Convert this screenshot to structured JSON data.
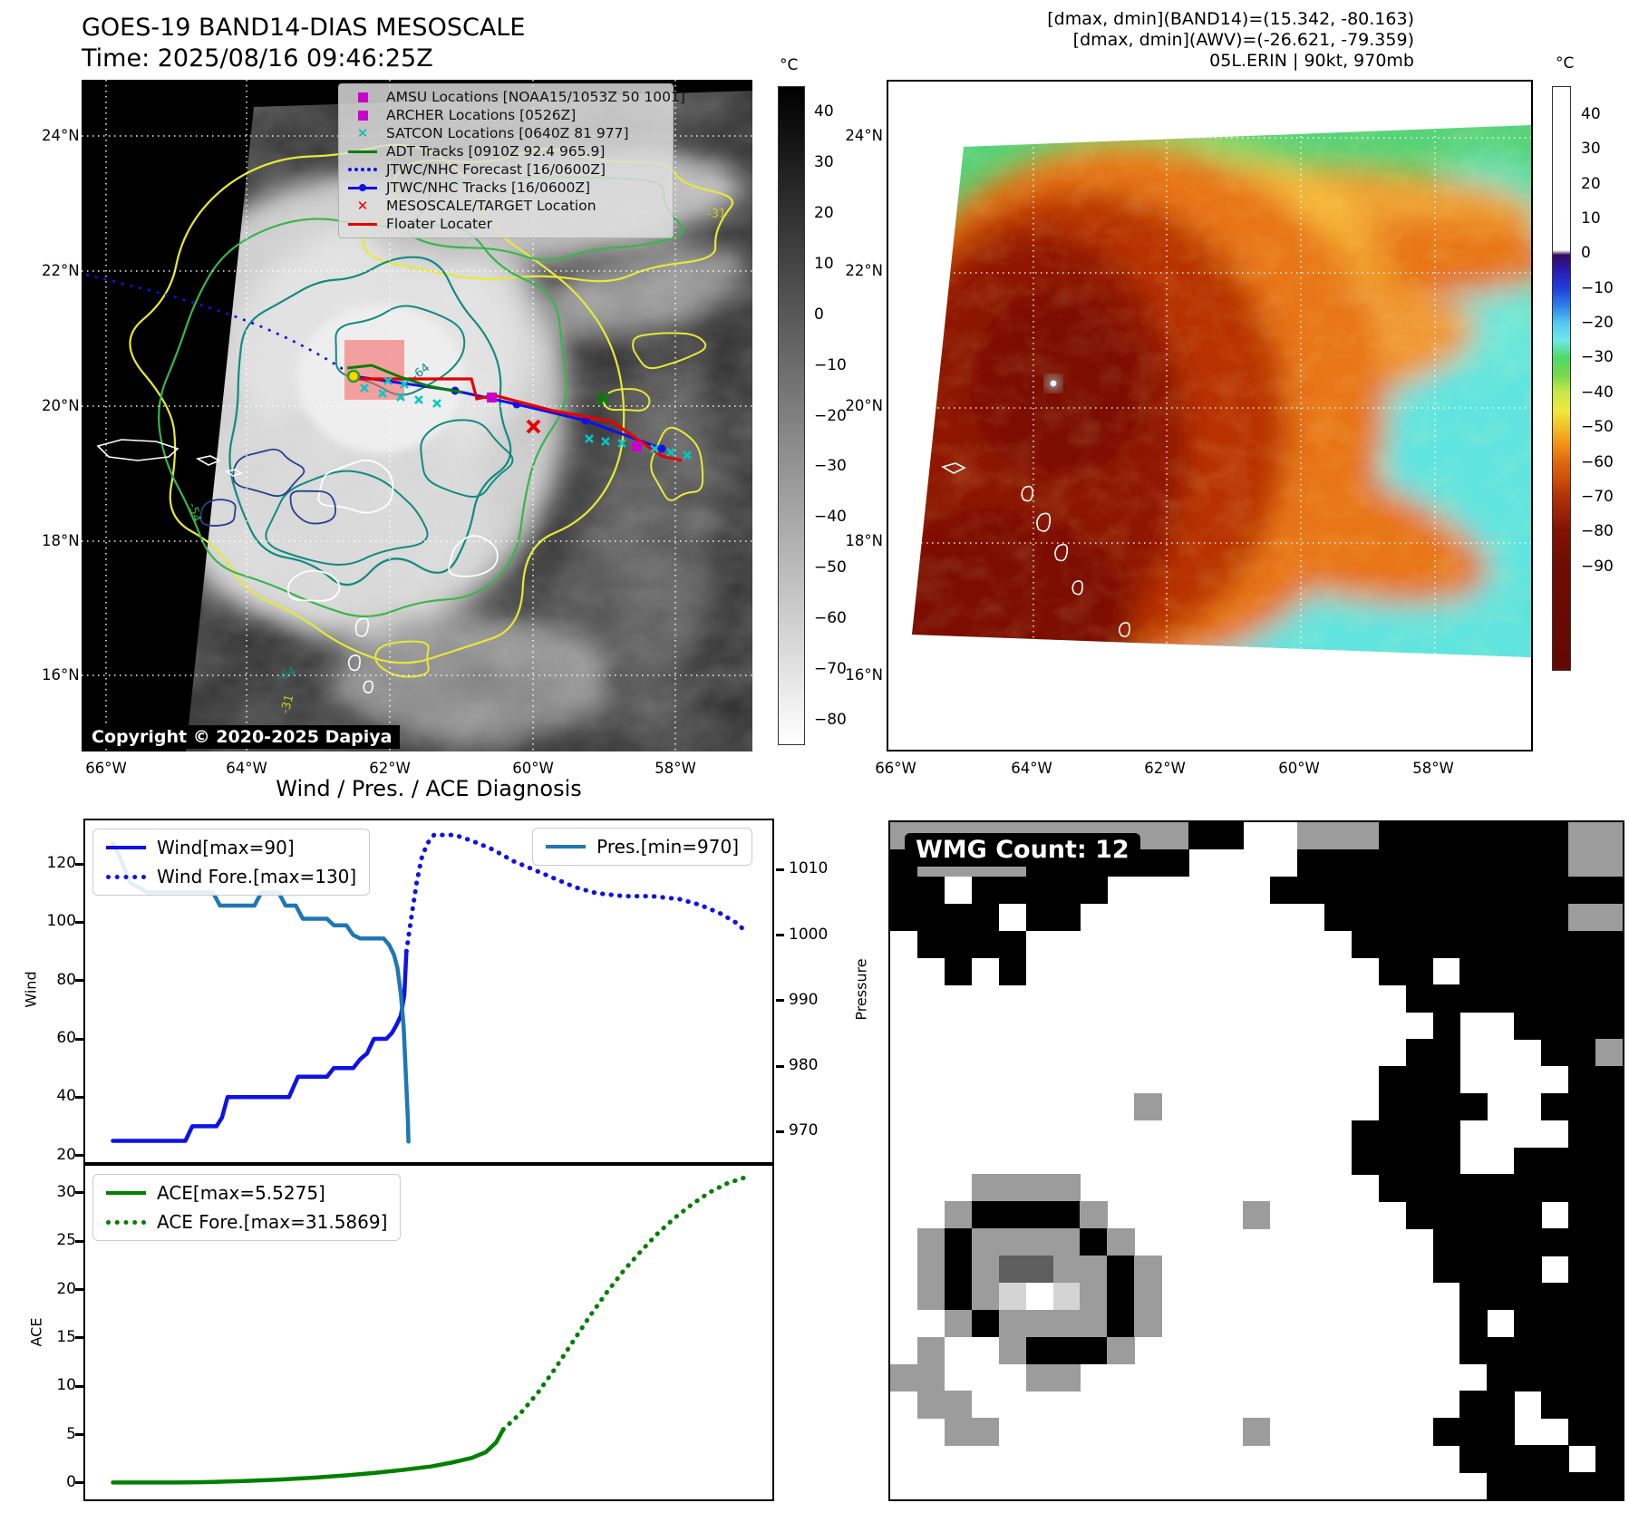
{
  "header": {
    "title_line1": "GOES-19 BAND14-DIAS MESOSCALE",
    "title_line2": "Time: 2025/08/16 09:46:25Z",
    "info_line1": "[dmax, dmin](BAND14)=(15.342, -80.163)",
    "info_line2": "[dmax, dmin](AWV)=(-26.621, -79.359)",
    "info_line3": "05L.ERIN | 90kt, 970mb"
  },
  "section_title": "Wind / Pres. / ACE Diagnosis",
  "map_left": {
    "lat_ticks": [
      "24°N",
      "22°N",
      "20°N",
      "18°N",
      "16°N"
    ],
    "lon_ticks": [
      "66°W",
      "64°W",
      "62°W",
      "60°W",
      "58°W"
    ],
    "copyright": "Copyright © 2020-2025 Dapiya",
    "colorbar": {
      "unit": "°C",
      "ticks": [
        40,
        30,
        20,
        10,
        0,
        -10,
        -20,
        -30,
        -40,
        -50,
        -60,
        -70,
        -80
      ]
    },
    "contour_labels": [
      "-64",
      "-31",
      "-54"
    ],
    "legend": [
      {
        "label": "AMSU Locations [NOAA15/1053Z 50 1001]",
        "marker": "square",
        "color": "#cc00cc"
      },
      {
        "label": "ARCHER Locations [0526Z]",
        "marker": "square",
        "color": "#cc00cc"
      },
      {
        "label": "SATCON Locations [0640Z 81 977]",
        "marker": "x",
        "color": "#00b8b8"
      },
      {
        "label": "ADT Tracks [0910Z 92.4 965.9]",
        "marker": "line",
        "color": "#067f06"
      },
      {
        "label": "JTWC/NHC Forecast [16/0600Z]",
        "marker": "dotted",
        "color": "#0f12e8"
      },
      {
        "label": "JTWC/NHC Tracks [16/0600Z]",
        "marker": "line-dot",
        "color": "#0f12e8"
      },
      {
        "label": "MESOSCALE/TARGET Location",
        "marker": "x",
        "color": "#e80000"
      },
      {
        "label": "Floater Locater",
        "marker": "line",
        "color": "#e80000"
      }
    ]
  },
  "map_right": {
    "lat_ticks": [
      "24°N",
      "22°N",
      "20°N",
      "18°N",
      "16°N"
    ],
    "lon_ticks": [
      "66°W",
      "64°W",
      "62°W",
      "60°W",
      "58°W"
    ],
    "colorbar": {
      "unit": "°C",
      "ticks": [
        40,
        30,
        20,
        10,
        0,
        -10,
        -20,
        -30,
        -40,
        -50,
        -60,
        -70,
        -80,
        -90
      ]
    }
  },
  "chart_data": [
    {
      "type": "line",
      "title": "Wind / Pres. / ACE Diagnosis",
      "ylabel_left": "Wind",
      "ylabel_right": "Pressure",
      "y_left": {
        "min": 18,
        "max": 135,
        "ticks": [
          20,
          40,
          60,
          80,
          100,
          120
        ]
      },
      "y_right": {
        "min": 965.5,
        "max": 1017.5,
        "ticks": [
          970,
          980,
          990,
          1000,
          1010
        ]
      },
      "legends": [
        {
          "position": "top-left",
          "entries": [
            {
              "label": "Wind[max=90]",
              "style": "solid",
              "color": "#0f12e8"
            },
            {
              "label": "Wind Fore.[max=130]",
              "style": "dotted",
              "color": "#0f12e8"
            }
          ]
        },
        {
          "position": "top-right",
          "entries": [
            {
              "label": "Pres.[min=970]",
              "style": "solid",
              "color": "#1f77b4"
            }
          ]
        }
      ],
      "series": [
        {
          "name": "Wind[max=90]",
          "axis": "left",
          "style": "solid",
          "color": "#0f12e8",
          "width": 4.5,
          "points": [
            [
              0.04,
              25
            ],
            [
              0.145,
              25
            ],
            [
              0.155,
              30
            ],
            [
              0.19,
              30
            ],
            [
              0.198,
              33
            ],
            [
              0.206,
              40
            ],
            [
              0.295,
              40
            ],
            [
              0.308,
              47
            ],
            [
              0.35,
              47
            ],
            [
              0.36,
              50
            ],
            [
              0.388,
              50
            ],
            [
              0.398,
              53
            ],
            [
              0.408,
              55
            ],
            [
              0.418,
              60
            ],
            [
              0.436,
              60
            ],
            [
              0.444,
              62
            ],
            [
              0.451,
              65
            ],
            [
              0.457,
              68
            ],
            [
              0.462,
              75
            ],
            [
              0.465,
              90
            ]
          ]
        },
        {
          "name": "Wind Fore.[max=130]",
          "axis": "left",
          "style": "dotted",
          "color": "#0f12e8",
          "width": 5,
          "points": [
            [
              0.465,
              90
            ],
            [
              0.473,
              103
            ],
            [
              0.48,
              114
            ],
            [
              0.487,
              122
            ],
            [
              0.495,
              127
            ],
            [
              0.505,
              130
            ],
            [
              0.535,
              130
            ],
            [
              0.56,
              128
            ],
            [
              0.59,
              125
            ],
            [
              0.62,
              121
            ],
            [
              0.65,
              118
            ],
            [
              0.68,
              115
            ],
            [
              0.71,
              112
            ],
            [
              0.74,
              110
            ],
            [
              0.78,
              109
            ],
            [
              0.82,
              109
            ],
            [
              0.86,
              108
            ],
            [
              0.89,
              106
            ],
            [
              0.92,
              103
            ],
            [
              0.945,
              99.5
            ],
            [
              0.955,
              97
            ]
          ]
        },
        {
          "name": "Pres.[min=970]",
          "axis": "right",
          "style": "solid",
          "color": "#1f77b4",
          "width": 4.5,
          "points": [
            [
              0.04,
              1014
            ],
            [
              0.05,
              1012
            ],
            [
              0.065,
              1008
            ],
            [
              0.09,
              1006.5
            ],
            [
              0.185,
              1006.5
            ],
            [
              0.195,
              1004.5
            ],
            [
              0.245,
              1004.5
            ],
            [
              0.255,
              1006.5
            ],
            [
              0.28,
              1006.5
            ],
            [
              0.29,
              1004.5
            ],
            [
              0.305,
              1004.5
            ],
            [
              0.315,
              1002.5
            ],
            [
              0.35,
              1002.5
            ],
            [
              0.36,
              1001.5
            ],
            [
              0.378,
              1001.5
            ],
            [
              0.388,
              1000
            ],
            [
              0.398,
              999.5
            ],
            [
              0.432,
              999.5
            ],
            [
              0.44,
              998.5
            ],
            [
              0.447,
              997
            ],
            [
              0.452,
              995
            ],
            [
              0.457,
              991
            ],
            [
              0.461,
              986
            ],
            [
              0.464,
              979
            ],
            [
              0.467,
              972
            ],
            [
              0.468,
              968.5
            ]
          ]
        }
      ]
    },
    {
      "type": "line",
      "title": "ACE",
      "ylabel_left": "ACE",
      "y_left": {
        "min": -1.6,
        "max": 32.8,
        "ticks": [
          0,
          5,
          10,
          15,
          20,
          25,
          30
        ]
      },
      "legends": [
        {
          "position": "top-left",
          "entries": [
            {
              "label": "ACE[max=5.5275]",
              "style": "solid",
              "color": "#008000"
            },
            {
              "label": "ACE Fore.[max=31.5869]",
              "style": "dotted",
              "color": "#008000"
            }
          ]
        }
      ],
      "series": [
        {
          "name": "ACE[max=5.5275]",
          "axis": "left",
          "style": "solid",
          "color": "#008000",
          "width": 4.5,
          "points": [
            [
              0.04,
              0.05
            ],
            [
              0.13,
              0.05
            ],
            [
              0.18,
              0.1
            ],
            [
              0.23,
              0.2
            ],
            [
              0.28,
              0.35
            ],
            [
              0.33,
              0.55
            ],
            [
              0.38,
              0.8
            ],
            [
              0.42,
              1.05
            ],
            [
              0.46,
              1.35
            ],
            [
              0.5,
              1.7
            ],
            [
              0.53,
              2.1
            ],
            [
              0.56,
              2.6
            ],
            [
              0.58,
              3.2
            ],
            [
              0.595,
              4.2
            ],
            [
              0.605,
              5.5275
            ]
          ]
        },
        {
          "name": "ACE Fore.[max=31.5869]",
          "axis": "left",
          "style": "dotted",
          "color": "#008000",
          "width": 5,
          "points": [
            [
              0.605,
              5.5275
            ],
            [
              0.63,
              7.2
            ],
            [
              0.655,
              9.3
            ],
            [
              0.68,
              11.8
            ],
            [
              0.705,
              14.5
            ],
            [
              0.73,
              17.2
            ],
            [
              0.755,
              19.7
            ],
            [
              0.78,
              22
            ],
            [
              0.805,
              24
            ],
            [
              0.83,
              25.9
            ],
            [
              0.855,
              27.5
            ],
            [
              0.88,
              28.9
            ],
            [
              0.905,
              30.1
            ],
            [
              0.93,
              31
            ],
            [
              0.955,
              31.5869
            ]
          ]
        }
      ]
    }
  ],
  "wmg": {
    "label": "WMG Count: 12",
    "palette": {
      "K": "#000000",
      "W": "#ffffff",
      "G": "#9c9c9c",
      "D": "#5f5f5f",
      "L": "#d4d4d4"
    },
    "grid": [
      "GGGGGGGGGGGKKWWGGGKKKKKKKGG",
      "KGGGGKKKKKKWWWWKKKKKKKKKKGG",
      "KKWKKKKKWWWWWWKKKKKKKKKKKKK",
      "KKKKWKKWWWWWWWWWKKKKKKKKKGG",
      "WKKKKWWWWWWWWWWWWKKKKKKKKKK",
      "WWKWKWWWWWWWWWWWWWKKWKKKKKK",
      "WWWWWWWWWWWWWWWWWWWKKKKKKKK",
      "WWWWWWWWWWWWWWWWWWWWKWWKKKK",
      "WWWWWWWWWWWWWWWWWWWKKWWWKKG",
      "WWWWWWWWWWWWWWWWWWKKKWWWWKK",
      "WWWWWWWWWGWWWWWWWWKKKKWWKKK",
      "WWWWWWWWWWWWWWWWWKKKKWWWWKK",
      "WWWWWWWWWWWWWWWWWKKKKWWKKKK",
      "WWWGGGGWWWWWWWWWWWKKKKKKKKK",
      "WWGKKKKGWWWWWGWWWWWKKKKKWKK",
      "WGKGGGGKGWWWWWWWWWWWKKKKKKK",
      "WGKGDDGGKGWWWWWWWWWWKKKKWKK",
      "WGKGLWLGKGWWWWWWWWWWWKKKKKK",
      "WWGKGGGGKGWWWWWWWWWWWKWKKKK",
      "WGWWGKKKGWWWWWWWWWWWWKKKKKK",
      "GGWWWGGWWWWWWWWWWWWWWWKKKKK",
      "WGGWWWWWWWWWWWWWWWWWWKKWKKK",
      "WWGGWWWWWWWWWGWWWWWWKKKWWKK",
      "WWWWWWWWWWWWWWWWWWWWWKKKKWK",
      "WWWWWWWWWWWWWWWWWWWWWWKKKKK"
    ]
  }
}
